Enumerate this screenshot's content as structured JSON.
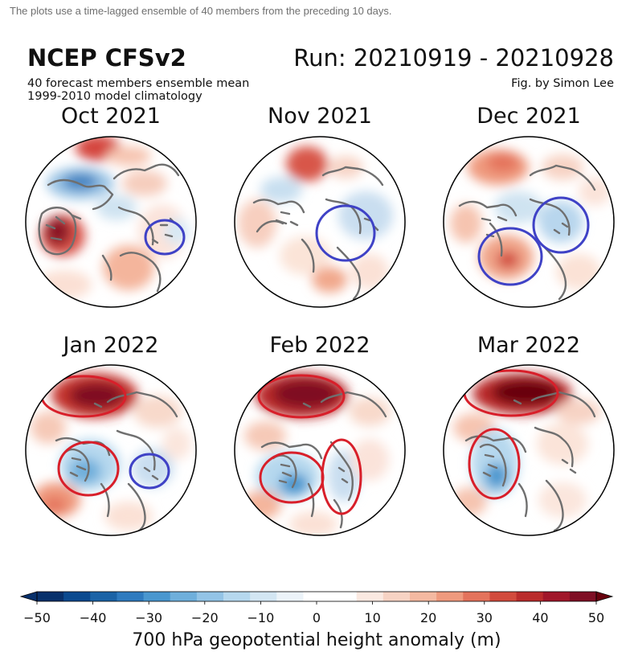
{
  "caption": "The plots use a time-lagged ensemble of 40 members from the preceding 10 days.",
  "header": {
    "title": "NCEP CFSv2",
    "run": "Run: 20210919 - 20210928",
    "subtitle1": "40 forecast members ensemble mean",
    "subtitle2": "1999-2010 model climatology",
    "credit": "Fig. by Simon Lee"
  },
  "panels": [
    {
      "title": "Oct 2021"
    },
    {
      "title": "Nov 2021"
    },
    {
      "title": "Dec 2021"
    },
    {
      "title": "Jan 2022"
    },
    {
      "title": "Feb 2022"
    },
    {
      "title": "Mar 2022"
    }
  ],
  "colorbar": {
    "label": "700 hPa geopotential height anomaly (m)",
    "ticks": [
      "−50",
      "−40",
      "−30",
      "−20",
      "−10",
      "0",
      "10",
      "20",
      "30",
      "40",
      "50"
    ],
    "min": -50,
    "max": 50,
    "step": 5,
    "colors": [
      "#08306b",
      "#0b4a8f",
      "#1b63a6",
      "#2f7bbf",
      "#4a97cf",
      "#6fafdb",
      "#93c4e6",
      "#b6d8ee",
      "#d3e6f3",
      "#ecf3f9",
      "#ffffff",
      "#ffffff",
      "#fbe9e1",
      "#f7d3c4",
      "#f4b9a1",
      "#ef9a7e",
      "#e4735c",
      "#d24b3d",
      "#ba2c2c",
      "#a1172a",
      "#7f0e24"
    ],
    "end_colors": {
      "low": "#08306b",
      "high": "#67000d"
    }
  },
  "annotation_colors": {
    "blue": "#3f42c6",
    "red": "#d81f2a"
  }
}
